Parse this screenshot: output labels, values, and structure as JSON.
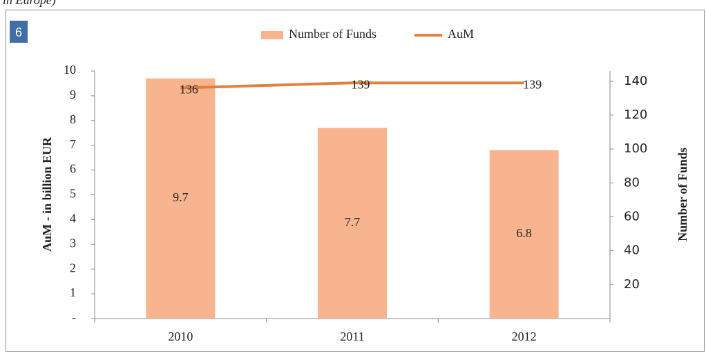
{
  "heading": "in Europe)",
  "badge": "6",
  "chart_data": {
    "type": "bar",
    "categories": [
      "2010",
      "2011",
      "2012"
    ],
    "series": [
      {
        "name": "Number of Funds",
        "type": "bar",
        "color": "#f8b48f",
        "values": [
          9.7,
          7.7,
          6.8
        ],
        "axis": "y"
      },
      {
        "name": "AuM",
        "type": "line",
        "color": "#e0813d",
        "values": [
          136,
          139,
          139
        ],
        "axis": "y2"
      }
    ],
    "ylabel": "AuM - in billion EUR",
    "y2label": "Number of Funds",
    "ylim": [
      0,
      10
    ],
    "yticks": [
      {
        "value": 0,
        "label": "-"
      },
      1,
      2,
      3,
      4,
      5,
      6,
      7,
      8,
      9,
      10
    ],
    "y2lim": [
      0,
      146
    ],
    "y2ticks": [
      20,
      40,
      60,
      80,
      100,
      120,
      140
    ],
    "legend": "top",
    "grid": false,
    "data_labels": true
  }
}
